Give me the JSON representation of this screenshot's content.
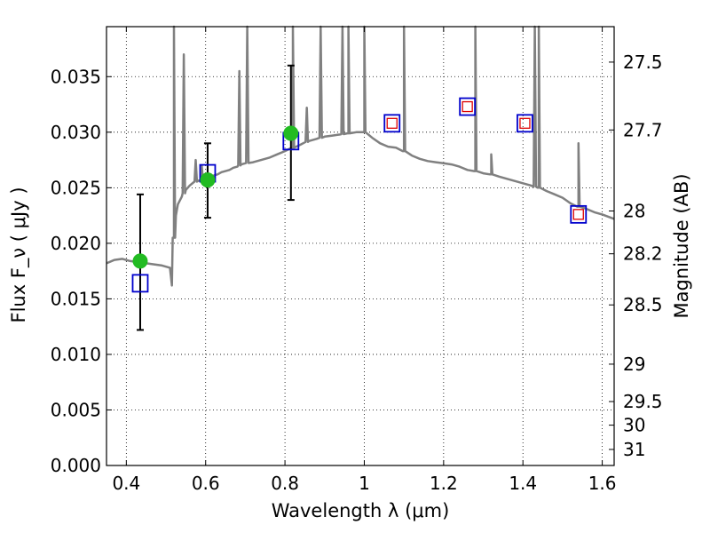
{
  "chart_data": {
    "type": "scatter",
    "xlabel": "Wavelength  λ (μm)",
    "ylabel": "Flux  F_ν  ( μJy )",
    "y2label": "Magnitude (AB)",
    "xlim": [
      0.35,
      1.63
    ],
    "ylim": [
      0.0,
      0.0395
    ],
    "grid": true,
    "x_ticks": [
      "0.4",
      "0.6",
      "0.8",
      "1",
      "1.2",
      "1.4",
      "1.6"
    ],
    "x_tick_values": [
      0.4,
      0.6,
      0.8,
      1.0,
      1.2,
      1.4,
      1.6
    ],
    "y_ticks": [
      "0.000",
      "0.005",
      "0.010",
      "0.015",
      "0.020",
      "0.025",
      "0.030",
      "0.035"
    ],
    "y_tick_values": [
      0.0,
      0.005,
      0.01,
      0.015,
      0.02,
      0.025,
      0.03,
      0.035
    ],
    "y2_ticks": [
      "27.5",
      "27.7",
      "28",
      "28.2",
      "28.5",
      "29",
      "29.5",
      "30",
      "31"
    ],
    "y2_tick_values": [
      27.5,
      27.7,
      28.0,
      28.2,
      28.5,
      29.0,
      29.5,
      30.0,
      31.0
    ],
    "colors": {
      "spectrum": "#808080",
      "observed": "#22bb22",
      "model_box": "#0000cc",
      "model_inner": "#dd0000",
      "errorbar": "#000000"
    },
    "series": [
      {
        "kind": "line",
        "x": [
          0.35,
          0.37,
          0.39,
          0.41,
          0.43,
          0.45,
          0.47,
          0.49,
          0.51,
          0.515,
          0.52,
          0.525,
          0.53,
          0.54,
          0.55,
          0.56,
          0.57,
          0.58,
          0.59,
          0.6,
          0.61,
          0.62,
          0.63,
          0.64,
          0.65,
          0.66,
          0.67,
          0.68,
          0.69,
          0.7,
          0.72,
          0.74,
          0.76,
          0.78,
          0.8,
          0.82,
          0.84,
          0.86,
          0.88,
          0.9,
          0.92,
          0.94,
          0.96,
          0.98,
          1.0,
          1.02,
          1.04,
          1.06,
          1.08,
          1.1,
          1.12,
          1.14,
          1.16,
          1.18,
          1.2,
          1.22,
          1.24,
          1.26,
          1.28,
          1.3,
          1.32,
          1.34,
          1.36,
          1.38,
          1.4,
          1.42,
          1.44,
          1.46,
          1.48,
          1.5,
          1.52,
          1.54,
          1.56,
          1.58,
          1.6,
          1.63
        ],
        "y": [
          0.0182,
          0.0185,
          0.0186,
          0.0184,
          0.0183,
          0.0182,
          0.0181,
          0.018,
          0.0178,
          0.0162,
          0.0205,
          0.0225,
          0.0235,
          0.0242,
          0.0248,
          0.0252,
          0.0255,
          0.0256,
          0.0257,
          0.0258,
          0.0259,
          0.0261,
          0.0262,
          0.0264,
          0.0265,
          0.0266,
          0.0268,
          0.0269,
          0.0271,
          0.0272,
          0.0273,
          0.0275,
          0.0277,
          0.028,
          0.0283,
          0.0286,
          0.0289,
          0.0292,
          0.0294,
          0.0296,
          0.0297,
          0.0298,
          0.0299,
          0.03,
          0.03,
          0.0295,
          0.029,
          0.0287,
          0.0286,
          0.0283,
          0.0279,
          0.0276,
          0.0274,
          0.0273,
          0.0272,
          0.0271,
          0.0269,
          0.0266,
          0.0265,
          0.0263,
          0.0262,
          0.026,
          0.0258,
          0.0256,
          0.0254,
          0.0252,
          0.025,
          0.0247,
          0.0244,
          0.0241,
          0.0236,
          0.0233,
          0.0231,
          0.0228,
          0.0226,
          0.0222
        ],
        "emission_lines": [
          {
            "x": 0.52,
            "peak": 0.0395
          },
          {
            "x": 0.545,
            "peak": 0.037
          },
          {
            "x": 0.575,
            "peak": 0.0275
          },
          {
            "x": 0.59,
            "peak": 0.027
          },
          {
            "x": 0.685,
            "peak": 0.0355
          },
          {
            "x": 0.705,
            "peak": 0.0395
          },
          {
            "x": 0.82,
            "peak": 0.0395
          },
          {
            "x": 0.855,
            "peak": 0.0322
          },
          {
            "x": 0.89,
            "peak": 0.0395
          },
          {
            "x": 0.945,
            "peak": 0.0395
          },
          {
            "x": 0.96,
            "peak": 0.0395
          },
          {
            "x": 1.0,
            "peak": 0.0395
          },
          {
            "x": 1.1,
            "peak": 0.0395
          },
          {
            "x": 1.28,
            "peak": 0.0395
          },
          {
            "x": 1.32,
            "peak": 0.028
          },
          {
            "x": 1.43,
            "peak": 0.0395
          },
          {
            "x": 1.44,
            "peak": 0.0395
          },
          {
            "x": 1.54,
            "peak": 0.029
          }
        ]
      },
      {
        "kind": "observed_points",
        "x": [
          0.435,
          0.605,
          0.815
        ],
        "y": [
          0.0184,
          0.0257,
          0.0299
        ],
        "yerr_low": [
          0.0122,
          0.0223,
          0.0239
        ],
        "yerr_high": [
          0.0244,
          0.029,
          0.036
        ]
      },
      {
        "kind": "model_photometry",
        "x": [
          0.435,
          0.605,
          0.815,
          1.07,
          1.26,
          1.405,
          1.54
        ],
        "y": [
          0.0164,
          0.0263,
          0.0292,
          0.0308,
          0.0323,
          0.0308,
          0.0226
        ],
        "inner_marker": [
          false,
          false,
          false,
          true,
          true,
          true,
          true
        ]
      }
    ]
  }
}
